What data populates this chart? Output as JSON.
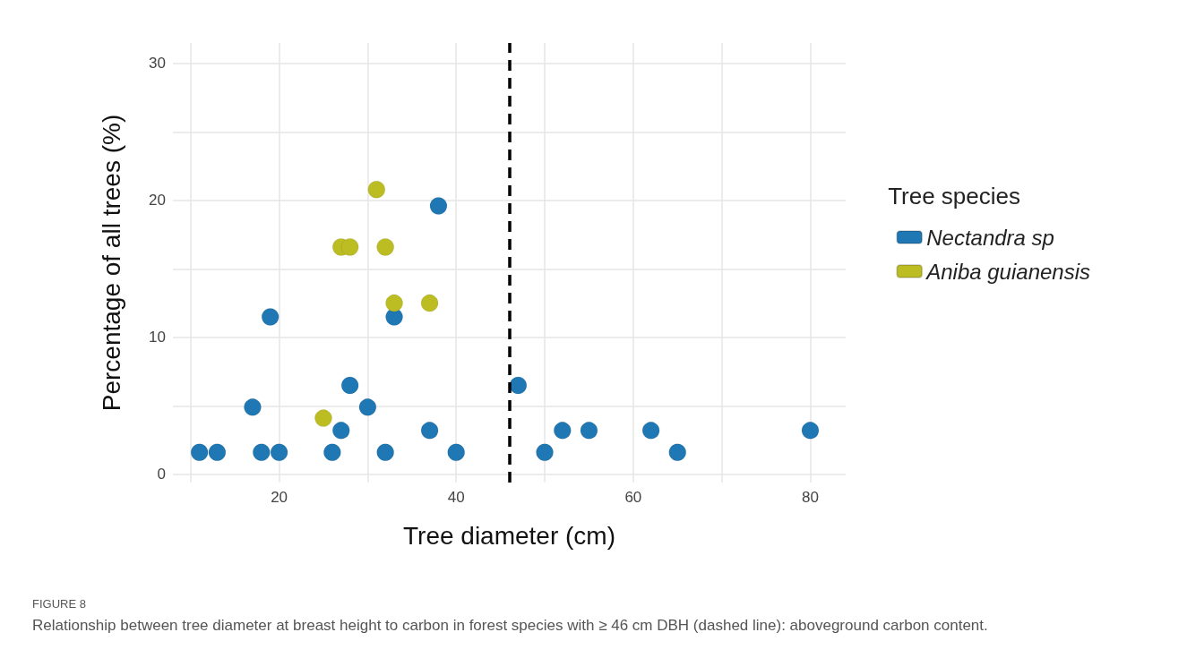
{
  "chart_data": {
    "type": "scatter",
    "xlabel": "Tree diameter (cm)",
    "ylabel": "Percentage of all trees (%)",
    "legend_title": "Tree species",
    "series": [
      {
        "name": "Nectandra sp",
        "color": "#1f77b4",
        "x": [
          11,
          13,
          17,
          18,
          19,
          20,
          26,
          27,
          28,
          30,
          32,
          33,
          37,
          38,
          40,
          47,
          50,
          52,
          55,
          62,
          65,
          80
        ],
        "values": [
          1.6,
          1.6,
          4.9,
          1.6,
          11.5,
          1.6,
          1.6,
          3.2,
          6.5,
          4.9,
          1.6,
          11.5,
          3.2,
          19.6,
          1.6,
          6.5,
          1.6,
          3.2,
          3.2,
          3.2,
          1.6,
          3.2
        ]
      },
      {
        "name": "Aniba guianensis",
        "color": "#bcbd22",
        "x": [
          25,
          27,
          28,
          31,
          32,
          33,
          37
        ],
        "values": [
          4.1,
          16.6,
          16.6,
          20.8,
          16.6,
          12.5,
          12.5
        ]
      }
    ],
    "xlim": [
      8,
      84
    ],
    "xticks": [
      {
        "value": 10,
        "label": null
      },
      20,
      {
        "value": 30,
        "label": null
      },
      40,
      {
        "value": 50,
        "label": null
      },
      60,
      {
        "value": 70,
        "label": null
      },
      80
    ],
    "ylim": [
      -0.6,
      31.5
    ],
    "yticks": [
      0,
      {
        "value": 5,
        "label": null
      },
      10,
      {
        "value": 15,
        "label": null
      },
      20,
      {
        "value": 25,
        "label": null
      },
      30
    ],
    "ref_lines": [
      {
        "axis": "x",
        "value": 46,
        "label": null,
        "color": "#000000",
        "line_style": "dashed"
      }
    ],
    "grid": true,
    "legend": "right",
    "marker": "circle",
    "annotations": [
      "FIGURE 8",
      "Relationship between tree diameter at breast height to carbon in forest species with ≥ 46 cm DBH (dashed line): aboveground carbon content."
    ]
  }
}
